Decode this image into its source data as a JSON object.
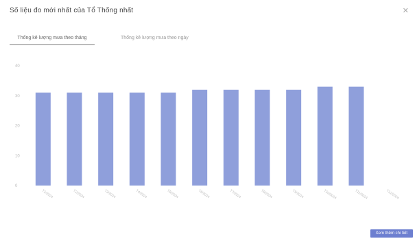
{
  "dialog": {
    "title": "Số liệu đo mới nhất của Tổ Thống nhất",
    "close_icon": "close-icon"
  },
  "tabs": [
    {
      "label": "Thống kê lượng mưa theo tháng",
      "active": true
    },
    {
      "label": "Thống kê lượng mưa theo ngày",
      "active": false
    }
  ],
  "footer": {
    "more_label": "Xem thêm chi tiết"
  },
  "colors": {
    "bar": "#8f9fdb",
    "accent": "#6d7fd0"
  },
  "chart_data": {
    "type": "bar",
    "categories": [
      "T1/2024",
      "T2/2024",
      "T3/2024",
      "T4/2024",
      "T5/2024",
      "T6/2024",
      "T7/2024",
      "T8/2024",
      "T9/2024",
      "T10/2024",
      "T11/2024",
      "T12/2024"
    ],
    "values": [
      31,
      31,
      31,
      31,
      31,
      32,
      32,
      32,
      32,
      33,
      33,
      null
    ],
    "yticks": [
      "0",
      "10",
      "20",
      "30",
      "40"
    ],
    "ylim": [
      0,
      40
    ],
    "grid": false,
    "title": "",
    "xlabel": "",
    "ylabel": ""
  }
}
